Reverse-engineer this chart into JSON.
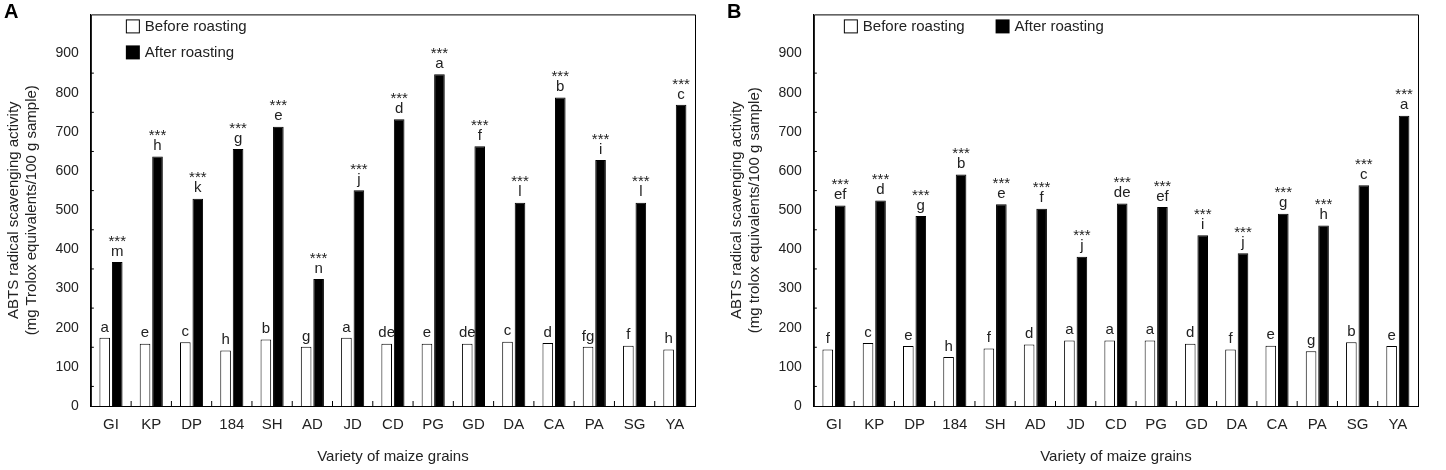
{
  "chart_data": [
    {
      "type": "bar",
      "title": "A",
      "xlabel": "Variety of maize grains",
      "ylabel": "ABTS radical scavenging activity\n(mg Trolox equivalents/100 g sample)",
      "categories": [
        "GI",
        "KP",
        "DP",
        "184",
        "SH",
        "AD",
        "JD",
        "CD",
        "PG",
        "GD",
        "DA",
        "CA",
        "PA",
        "SG",
        "YA"
      ],
      "series": [
        {
          "name": "Before roasting",
          "color": "#ffffff",
          "values": [
            174,
            159,
            163,
            142,
            170,
            151,
            174,
            159,
            159,
            159,
            164,
            161,
            151,
            154,
            144
          ],
          "value_labels": [
            "a",
            "e",
            "c",
            "h",
            "b",
            "g",
            "a",
            "de",
            "e",
            "de",
            "c",
            "d",
            "fg",
            "f",
            "h"
          ]
        },
        {
          "name": "After roasting",
          "color": "#000000",
          "values": [
            368,
            637,
            529,
            656,
            713,
            324,
            551,
            732,
            847,
            663,
            519,
            788,
            628,
            519,
            769
          ],
          "value_labels": [
            "***\nm",
            "***\nh",
            "***\nk",
            "***\ng",
            "***\ne",
            "***\nn",
            "***\nj",
            "***\nd",
            "***\na",
            "***\nf",
            "***\nl",
            "***\nb",
            "***\ni",
            "***\nl",
            "***\nc"
          ]
        }
      ],
      "ylim": [
        0,
        1000
      ],
      "yticks": [
        0,
        100,
        200,
        300,
        400,
        500,
        600,
        700,
        800,
        900
      ],
      "legend": "top left",
      "grid": false
    },
    {
      "type": "bar",
      "title": "B",
      "xlabel": "Variety of maize grains",
      "ylabel": "ABTS radical scavenging activity\n(mg trolox equivalents/100 g sample)",
      "categories": [
        "GI",
        "KP",
        "DP",
        "184",
        "SH",
        "AD",
        "JD",
        "CD",
        "PG",
        "GD",
        "DA",
        "CA",
        "PA",
        "SG",
        "YA"
      ],
      "series": [
        {
          "name": "Before roasting",
          "color": "#ffffff",
          "values": [
            144,
            161,
            153,
            125,
            147,
            157,
            167,
            167,
            167,
            159,
            144,
            154,
            140,
            163,
            153
          ],
          "value_labels": [
            "f",
            "c",
            "e",
            "h",
            "f",
            "d",
            "a",
            "a",
            "a",
            "d",
            "f",
            "e",
            "g",
            "b",
            "e"
          ]
        },
        {
          "name": "After roasting",
          "color": "#000000",
          "values": [
            512,
            525,
            485,
            591,
            515,
            504,
            381,
            517,
            508,
            436,
            390,
            491,
            461,
            564,
            741
          ],
          "value_labels": [
            "***\nef",
            "***\nd",
            "***\ng",
            "***\nb",
            "***\ne",
            "***\nf",
            "***\nj",
            "***\nde",
            "***\nef",
            "***\ni",
            "***\nj",
            "***\ng",
            "***\nh",
            "***\nc",
            "***\na"
          ]
        }
      ],
      "ylim": [
        0,
        1000
      ],
      "yticks": [
        0,
        100,
        200,
        300,
        400,
        500,
        600,
        700,
        800,
        900
      ],
      "legend": "top left",
      "grid": false
    }
  ]
}
